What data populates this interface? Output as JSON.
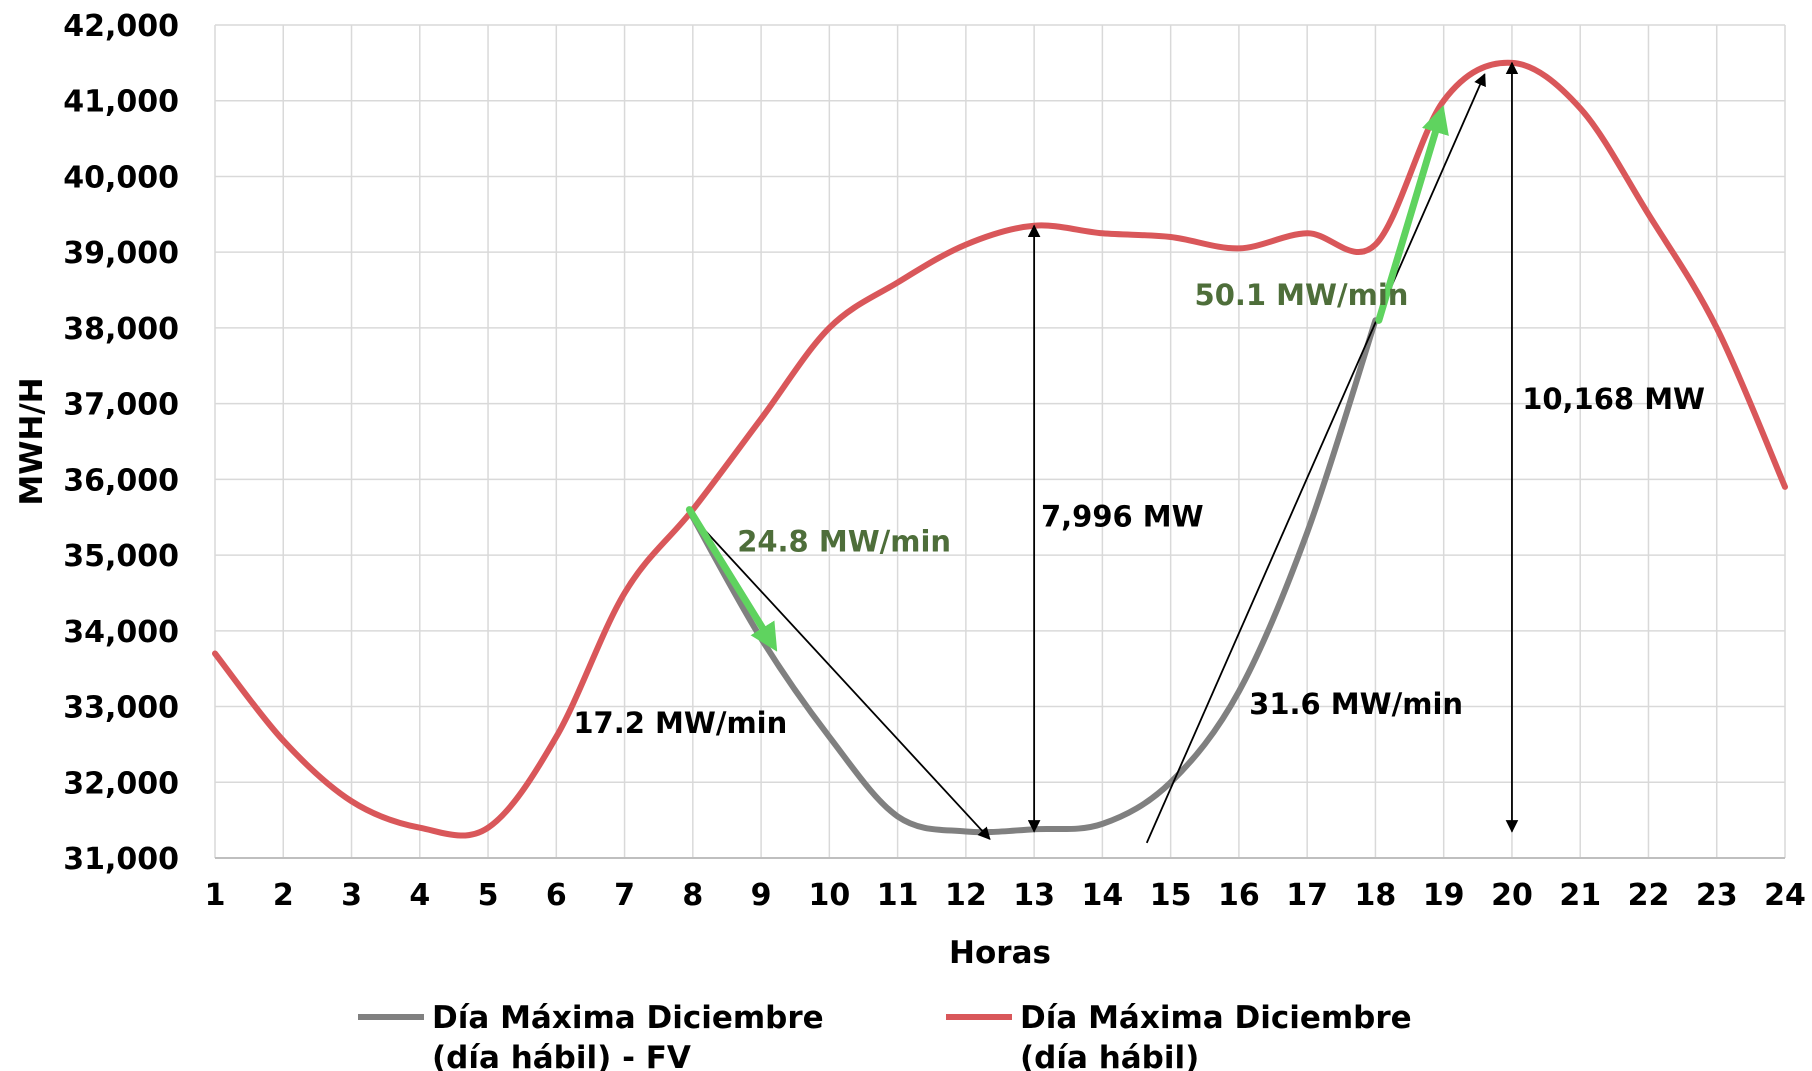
{
  "chart_data": {
    "type": "line",
    "xlabel": "Horas",
    "ylabel": "MWH/H",
    "x": [
      1,
      2,
      3,
      4,
      5,
      6,
      7,
      8,
      9,
      10,
      11,
      12,
      13,
      14,
      15,
      16,
      17,
      18,
      19,
      20,
      21,
      22,
      23,
      24
    ],
    "x_tick_labels": [
      "1",
      "2",
      "3",
      "4",
      "5",
      "6",
      "7",
      "8",
      "9",
      "10",
      "11",
      "12",
      "13",
      "14",
      "15",
      "16",
      "17",
      "18",
      "19",
      "20",
      "21",
      "22",
      "23",
      "24"
    ],
    "ylim": [
      31000,
      42000
    ],
    "y_ticks": [
      31000,
      32000,
      33000,
      34000,
      35000,
      36000,
      37000,
      38000,
      39000,
      40000,
      41000,
      42000
    ],
    "y_tick_labels": [
      "31,000",
      "32,000",
      "33,000",
      "34,000",
      "35,000",
      "36,000",
      "37,000",
      "38,000",
      "39,000",
      "40,000",
      "41,000",
      "42,000"
    ],
    "grid": true,
    "legend_position": "bottom",
    "series": [
      {
        "name": "Día Máxima Diciembre (día hábil) - FV",
        "legend_lines": [
          "Día Máxima Diciembre",
          "(día hábil) - FV"
        ],
        "color": "#808080",
        "x": [
          8,
          9,
          10,
          11,
          12,
          13,
          14,
          15,
          16,
          17,
          18
        ],
        "values": [
          35500,
          33900,
          32600,
          31550,
          31350,
          31380,
          31450,
          32000,
          33200,
          35300,
          38100
        ]
      },
      {
        "name": "Día Máxima Diciembre (día hábil)",
        "legend_lines": [
          "Día Máxima Diciembre",
          "(día hábil)"
        ],
        "color": "#d9575a",
        "x": [
          1,
          2,
          3,
          4,
          5,
          6,
          7,
          8,
          9,
          10,
          11,
          12,
          13,
          14,
          15,
          16,
          17,
          18,
          19,
          20,
          21,
          22,
          23,
          24
        ],
        "values": [
          33700,
          32550,
          31750,
          31400,
          31400,
          32600,
          34500,
          35600,
          36800,
          38000,
          38600,
          39100,
          39350,
          39250,
          39200,
          39050,
          39250,
          39100,
          41000,
          41500,
          40900,
          39500,
          38000,
          35900
        ]
      }
    ],
    "annotations": [
      {
        "label": "24.8 MW/min",
        "color": "#4e6e3a",
        "x": 8.65,
        "y": 35050
      },
      {
        "label": "17.2 MW/min",
        "color": "#000000",
        "x": 6.25,
        "y": 32650
      },
      {
        "label": "7,996 MW",
        "color": "#000000",
        "x": 13.1,
        "y": 35380
      },
      {
        "label": "50.1 MW/min",
        "color": "#4e6e3a",
        "x": 15.35,
        "y": 38300
      },
      {
        "label": "31.6 MW/min",
        "color": "#000000",
        "x": 16.15,
        "y": 32900
      },
      {
        "label": "10,168 MW",
        "color": "#000000",
        "x": 20.15,
        "y": 36930
      }
    ],
    "arrows": [
      {
        "kind": "double",
        "color": "#000000",
        "from": [
          13,
          39350
        ],
        "to": [
          13,
          31350
        ]
      },
      {
        "kind": "double",
        "color": "#000000",
        "from": [
          20,
          41500
        ],
        "to": [
          20,
          31350
        ]
      },
      {
        "kind": "single",
        "color": "#000000",
        "from": [
          8,
          35500
        ],
        "to": [
          12.35,
          31250
        ]
      },
      {
        "kind": "single",
        "color": "#000000",
        "from": [
          14.65,
          31200
        ],
        "to": [
          19.6,
          41350
        ]
      },
      {
        "kind": "single-thick",
        "color": "#5fd35f",
        "from": [
          7.95,
          35600
        ],
        "to": [
          9.15,
          33850
        ]
      },
      {
        "kind": "single-thick",
        "color": "#5fd35f",
        "from": [
          18.05,
          38100
        ],
        "to": [
          18.95,
          40800
        ]
      }
    ]
  }
}
